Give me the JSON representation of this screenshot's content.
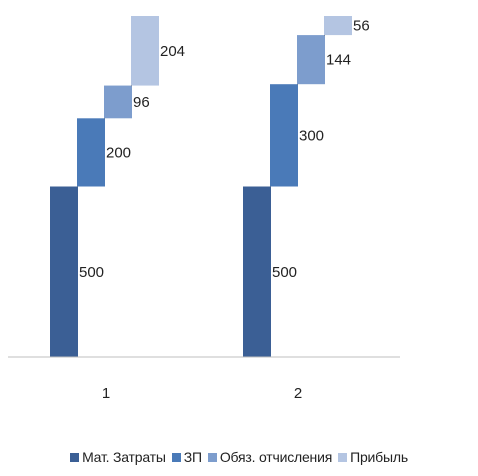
{
  "chart_data": {
    "type": "bar",
    "stacked_waterfall": true,
    "categories": [
      "1",
      "2"
    ],
    "series": [
      {
        "name": "Мат. Затраты",
        "values": [
          500,
          500
        ],
        "color": "#3b5f95"
      },
      {
        "name": "ЗП",
        "values": [
          200,
          300
        ],
        "color": "#4a7ab8"
      },
      {
        "name": "Обяз. отчисления",
        "values": [
          96,
          144
        ],
        "color": "#7d9dcd"
      },
      {
        "name": "Прибыль",
        "values": [
          204,
          56
        ],
        "color": "#b4c5e2"
      }
    ],
    "data_labels": [
      [
        "500",
        "200",
        "96",
        "204"
      ],
      [
        "500",
        "300",
        "144",
        "56"
      ]
    ],
    "title": "",
    "xlabel": "",
    "ylabel": "",
    "ylim": [
      0,
      1000
    ],
    "grid": false,
    "legend_position": "bottom"
  }
}
